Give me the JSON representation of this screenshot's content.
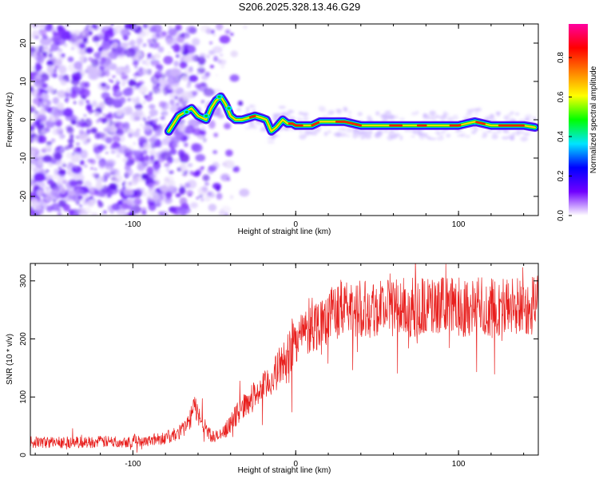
{
  "title": "S206.2025.328.13.46.G29",
  "chart_data": [
    {
      "type": "heatmap",
      "panel": "spectrogram",
      "xlabel": "Height of straight line (km)",
      "ylabel": "Frequency (Hz)",
      "xlim": [
        -163,
        149
      ],
      "ylim": [
        -25,
        25
      ],
      "xticks": [
        -100,
        0,
        100
      ],
      "xtick_labels": [
        "-100",
        "0",
        "100"
      ],
      "yticks": [
        -20,
        -10,
        0,
        10,
        20
      ],
      "ytick_labels": [
        "-20",
        "-10",
        "0",
        "10",
        "20"
      ],
      "ridge": {
        "description": "frequency track of dominant signal vs height",
        "x": [
          -78,
          -75,
          -72,
          -68,
          -64,
          -60,
          -55,
          -52,
          -49,
          -46,
          -43,
          -40,
          -37,
          -33,
          -29,
          -25,
          -21,
          -18,
          -15,
          -12,
          -8,
          -5,
          -2,
          0,
          5,
          10,
          15,
          20,
          30,
          40,
          50,
          60,
          70,
          80,
          90,
          100,
          110,
          120,
          130,
          140,
          147
        ],
        "y": [
          -3,
          -1,
          1,
          2,
          3,
          1,
          0,
          3,
          5,
          6,
          4,
          1,
          0,
          0,
          0.5,
          1,
          0.5,
          0,
          -3,
          -2,
          0,
          -1,
          -1,
          -1.5,
          -1.5,
          -1.5,
          -0.5,
          -0.5,
          -0.5,
          -1.5,
          -1.5,
          -1.5,
          -1.5,
          -1.5,
          -1.5,
          -1.5,
          -0.5,
          -1.5,
          -1.5,
          -1.5,
          -2
        ]
      },
      "colorbar": {
        "label": "Normalized spectral amplitude",
        "range": [
          0,
          0.97
        ],
        "ticks": [
          0.0,
          0.2,
          0.4,
          0.6,
          0.8
        ],
        "tick_labels": [
          "0.0",
          "0.2",
          "0.4",
          "0.6",
          "0.8"
        ],
        "colors": [
          "#ffffff",
          "#7000ff",
          "#0000ff",
          "#00e5ff",
          "#00ff00",
          "#ffff00",
          "#ff8000",
          "#ff0000",
          "#ff00a0"
        ]
      }
    },
    {
      "type": "line",
      "panel": "snr",
      "xlabel": "Height of straight line (km)",
      "ylabel": "SNR (10 * v/v)",
      "xlim": [
        -163,
        149
      ],
      "ylim": [
        0,
        330
      ],
      "xticks": [
        -100,
        0,
        100
      ],
      "xtick_labels": [
        "-100",
        "0",
        "100"
      ],
      "yticks": [
        0,
        100,
        200,
        300
      ],
      "ytick_labels": [
        "0",
        "100",
        "200",
        "300"
      ],
      "color": "#e8201e",
      "series": [
        {
          "name": "SNR",
          "x": [
            -163,
            -150,
            -140,
            -130,
            -120,
            -110,
            -100,
            -90,
            -80,
            -75,
            -70,
            -65,
            -62,
            -60,
            -57,
            -54,
            -50,
            -45,
            -40,
            -35,
            -30,
            -25,
            -20,
            -15,
            -10,
            -5,
            0,
            5,
            10,
            15,
            20,
            25,
            30,
            35,
            40,
            50,
            60,
            70,
            80,
            90,
            100,
            110,
            120,
            130,
            140,
            149
          ],
          "y": [
            22,
            22,
            22,
            22,
            23,
            23,
            24,
            26,
            30,
            34,
            42,
            60,
            85,
            70,
            55,
            40,
            30,
            35,
            55,
            75,
            90,
            105,
            115,
            130,
            150,
            175,
            200,
            210,
            220,
            230,
            240,
            248,
            252,
            255,
            255,
            256,
            255,
            254,
            256,
            255,
            255,
            256,
            254,
            256,
            255,
            262
          ]
        }
      ]
    }
  ]
}
